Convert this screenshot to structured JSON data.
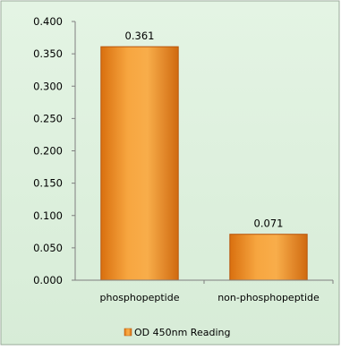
{
  "chart_data": {
    "type": "bar",
    "categories": [
      "phosphopeptide",
      "non-phosphopeptide"
    ],
    "series": [
      {
        "name": "OD 450nm Reading",
        "values": [
          0.361,
          0.071
        ]
      }
    ],
    "data_labels": [
      "0.361",
      "0.071"
    ],
    "y_ticks": [
      "0.000",
      "0.050",
      "0.100",
      "0.150",
      "0.200",
      "0.250",
      "0.300",
      "0.350",
      "0.400"
    ],
    "ylim": [
      0,
      0.4
    ],
    "grid": false,
    "legend_position": "bottom",
    "colors": {
      "bar_fill": "#f59a22",
      "bar_edge": "#b8560d",
      "background": "#dff0df",
      "frame": "#9aaa9a"
    }
  }
}
